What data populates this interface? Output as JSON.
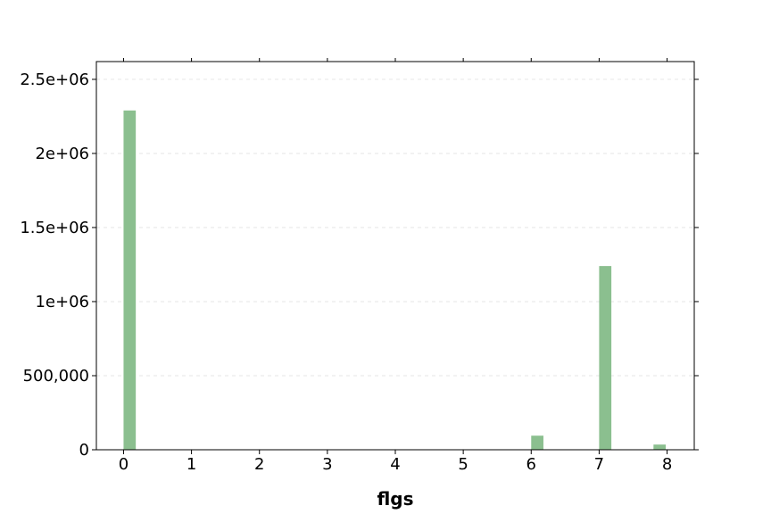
{
  "chart_data": {
    "type": "bar",
    "title": "",
    "xlabel": "flgs",
    "ylabel": "",
    "x_ticks": [
      "0",
      "1",
      "2",
      "3",
      "4",
      "5",
      "6",
      "7",
      "8"
    ],
    "y_ticks": [
      {
        "value": 0,
        "label": "0"
      },
      {
        "value": 500000,
        "label": "500,000"
      },
      {
        "value": 1000000,
        "label": "1e+06"
      },
      {
        "value": 1500000,
        "label": "1.5e+06"
      },
      {
        "value": 2000000,
        "label": "2e+06"
      },
      {
        "value": 2500000,
        "label": "2.5e+06"
      }
    ],
    "xlim": [
      -0.4,
      8.4
    ],
    "ylim": [
      0,
      2620000
    ],
    "bar_width": 0.18,
    "bars": [
      {
        "x": 0.09,
        "value": 2290000
      },
      {
        "x": 6.09,
        "value": 95000
      },
      {
        "x": 7.09,
        "value": 1240000
      },
      {
        "x": 7.89,
        "value": 35000
      }
    ],
    "bar_color": "#8bbf8f",
    "grid": true,
    "legend": "none"
  }
}
